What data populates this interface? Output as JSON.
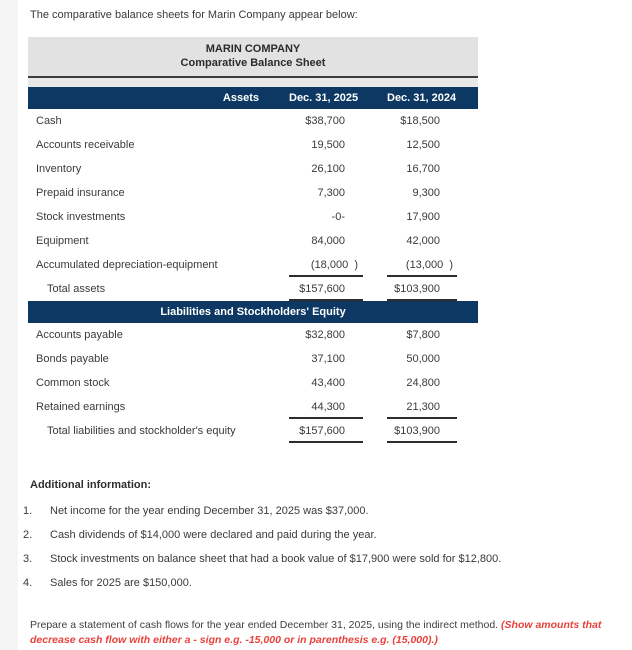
{
  "page": {
    "intro": "The comparative balance sheets for Marin Company appear below:",
    "additional_info_title": "Additional information:",
    "additional_info": [
      {
        "num": "1.",
        "text": "Net income for the year ending December 31, 2025 was $37,000."
      },
      {
        "num": "2.",
        "text": "Cash dividends of $14,000 were declared and paid during the year."
      },
      {
        "num": "3.",
        "text": "Stock investments on balance sheet that had a book value of $17,900 were sold for $12,800."
      },
      {
        "num": "4.",
        "text": "Sales for 2025 are $150,000."
      }
    ],
    "instruction_black": "Prepare a statement of cash flows for the year ended December 31, 2025, using the indirect method. ",
    "instruction_red": "(Show amounts that decrease cash flow with either a - sign e.g. -15,000 or in parenthesis e.g. (15,000).)"
  },
  "table": {
    "company": "MARIN COMPANY",
    "subtitle": "Comparative Balance Sheet",
    "assets_header": {
      "label": "Assets",
      "col1": "Dec. 31, 2025",
      "col2": "Dec. 31, 2024"
    },
    "liabilities_header": "Liabilities and Stockholders' Equity",
    "asset_rows": [
      {
        "label": "Cash",
        "v2025": "$38,700",
        "v2024": "$18,500"
      },
      {
        "label": "Accounts receivable",
        "v2025": "19,500",
        "v2024": "12,500"
      },
      {
        "label": "Inventory",
        "v2025": "26,100",
        "v2024": "16,700"
      },
      {
        "label": "Prepaid insurance",
        "v2025": "7,300",
        "v2024": "9,300"
      },
      {
        "label": "Stock investments",
        "v2025": "-0-",
        "v2024": "17,900"
      },
      {
        "label": "Equipment",
        "v2025": "84,000",
        "v2024": "42,000"
      },
      {
        "label": "Accumulated depreciation-equipment",
        "v2025": "(18,000  )",
        "v2024": "(13,000  )",
        "paren": true,
        "rule_below": true
      },
      {
        "label": "Total assets",
        "v2025": "$157,600",
        "v2024": "$103,900",
        "total": true,
        "rule_below": true
      }
    ],
    "liability_rows": [
      {
        "label": "Accounts payable",
        "v2025": "$32,800",
        "v2024": "$7,800"
      },
      {
        "label": "Bonds payable",
        "v2025": "37,100",
        "v2024": "50,000"
      },
      {
        "label": "Common stock",
        "v2025": "43,400",
        "v2024": "24,800"
      },
      {
        "label": "Retained earnings",
        "v2025": "44,300",
        "v2024": "21,300",
        "rule_below": true
      },
      {
        "label": "Total liabilities and stockholder's equity",
        "v2025": "$157,600",
        "v2024": "$103,900",
        "total": true,
        "rule_below": true
      }
    ]
  },
  "colors": {
    "navy": "#0c3863",
    "header_gray": "#e2e2e2",
    "rule": "#2d2d2d",
    "red_note": "#e8423c"
  }
}
